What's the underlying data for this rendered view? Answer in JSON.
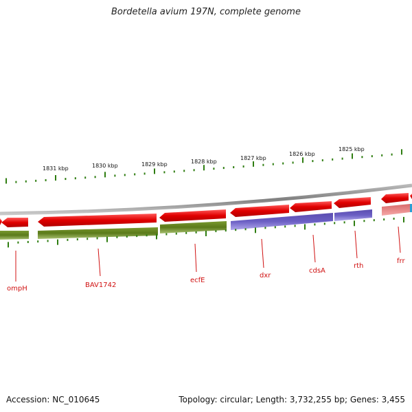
{
  "title": "Bordetella avium 197N, complete genome",
  "footer": {
    "accession": "Accession: NC_010645",
    "summary": "Topology: circular; Length: 3,732,255 bp; Genes: 3,455"
  },
  "colors": {
    "forward_cds": "#e00000",
    "reverse_cds": "#5b7a1a",
    "reverse_alt": "#6b5fc4",
    "pseudo": "#ef7f7f",
    "backbone": "#8c8c8c",
    "tick": "#2e7d10",
    "label": "#d01010"
  },
  "scale_labels": [
    "1831 kbp",
    "1830 kbp",
    "1829 kbp",
    "1828 kbp",
    "1827 kbp",
    "1826 kbp",
    "1825 kbp"
  ],
  "genes": [
    "ompH",
    "BAV1742",
    "ecfE",
    "dxr",
    "cdsA",
    "rth",
    "frr"
  ]
}
